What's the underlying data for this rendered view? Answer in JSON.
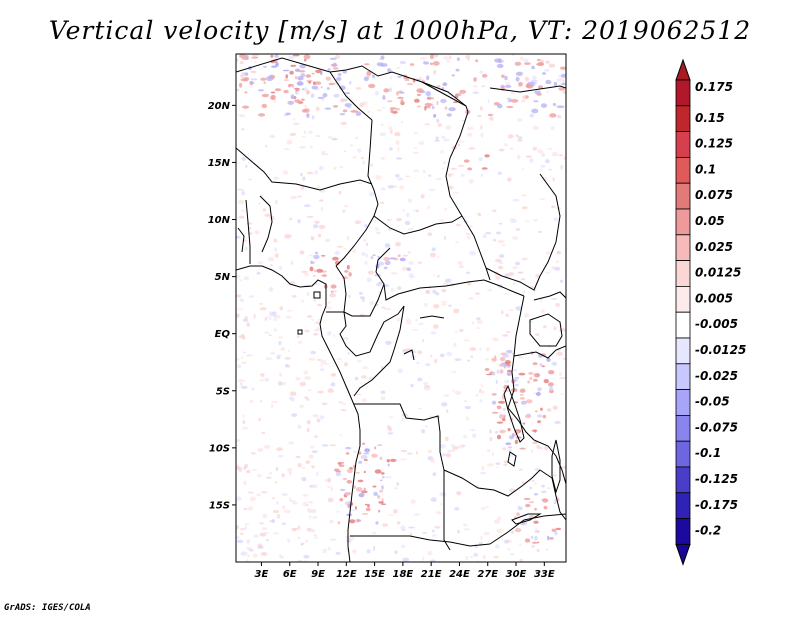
{
  "title": "Vertical velocity [m/s] at 1000hPa, VT: 2019062512",
  "credit": "GrADS: IGES/COLA",
  "map": {
    "lat_labels": [
      {
        "lat": 20,
        "label": "20N"
      },
      {
        "lat": 15,
        "label": "15N"
      },
      {
        "lat": 10,
        "label": "10N"
      },
      {
        "lat": 5,
        "label": "5N"
      },
      {
        "lat": 0,
        "label": "EQ"
      },
      {
        "lat": -5,
        "label": "5S"
      },
      {
        "lat": -10,
        "label": "10S"
      },
      {
        "lat": -15,
        "label": "15S"
      }
    ],
    "lon_labels": [
      {
        "lon": 3,
        "label": "3E"
      },
      {
        "lon": 6,
        "label": "6E"
      },
      {
        "lon": 9,
        "label": "9E"
      },
      {
        "lon": 12,
        "label": "12E"
      },
      {
        "lon": 15,
        "label": "15E"
      },
      {
        "lon": 18,
        "label": "18E"
      },
      {
        "lon": 21,
        "label": "21E"
      },
      {
        "lon": 24,
        "label": "24E"
      },
      {
        "lon": 27,
        "label": "27E"
      },
      {
        "lon": 30,
        "label": "30E"
      },
      {
        "lon": 33,
        "label": "33E"
      }
    ],
    "lon_range": [
      0.3,
      35.3
    ],
    "lat_range": [
      -20,
      24.5
    ]
  },
  "colorbar": {
    "levels": [
      {
        "label": "0.175",
        "color": "#b2182b"
      },
      {
        "label": "0.15",
        "color": "#c0272d"
      },
      {
        "label": "0.125",
        "color": "#d6404e"
      },
      {
        "label": "0.1",
        "color": "#e05a5a"
      },
      {
        "label": "0.075",
        "color": "#e37a7a"
      },
      {
        "label": "0.05",
        "color": "#ee9a9a"
      },
      {
        "label": "0.025",
        "color": "#f6baba"
      },
      {
        "label": "0.0125",
        "color": "#fbd6d6"
      },
      {
        "label": "0.005",
        "color": "#fdeaea"
      },
      {
        "label": "-0.005",
        "color": "#ffffff"
      },
      {
        "label": "-0.0125",
        "color": "#e6e6ff"
      },
      {
        "label": "-0.025",
        "color": "#c8c8ff"
      },
      {
        "label": "-0.05",
        "color": "#a8a4f8"
      },
      {
        "label": "-0.075",
        "color": "#8a84ee"
      },
      {
        "label": "-0.1",
        "color": "#6e66e0"
      },
      {
        "label": "-0.125",
        "color": "#4a3ec8"
      },
      {
        "label": "-0.175",
        "color": "#2f22b4"
      },
      {
        "label": "-0.2",
        "color": "#1c0a9e"
      }
    ],
    "top_color": "#a51d22",
    "bottom_color": "#1a0696"
  }
}
